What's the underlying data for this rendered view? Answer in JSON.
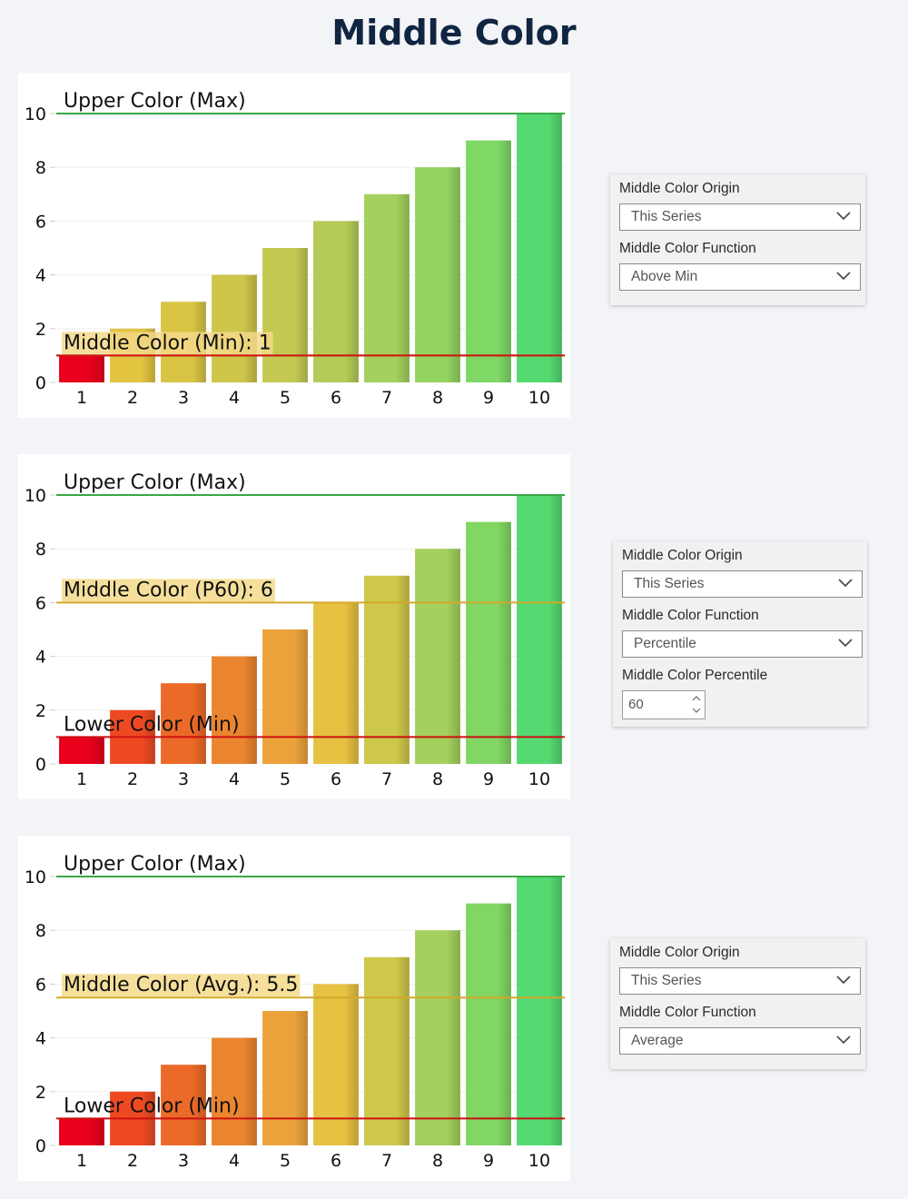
{
  "title": "Middle Color",
  "colors": {
    "upper": "#3aa845",
    "lower": "#cc1111",
    "middle_line": "#d4a82a",
    "label_bg": "#f3d98a"
  },
  "chart_data": [
    {
      "type": "bar",
      "categories": [
        "1",
        "2",
        "3",
        "4",
        "5",
        "6",
        "7",
        "8",
        "9",
        "10"
      ],
      "values": [
        1,
        2,
        3,
        4,
        5,
        6,
        7,
        8,
        9,
        10
      ],
      "ylim": [
        0,
        10
      ],
      "yticks": [
        "0",
        "2",
        "4",
        "6",
        "8",
        "10"
      ],
      "bar_colors": [
        "#e8001c",
        "#e2c441",
        "#d9c444",
        "#cdc64b",
        "#c4c952",
        "#b4cc57",
        "#a4d05d",
        "#93d461",
        "#7fd865",
        "#55da72"
      ],
      "reference_lines": [
        {
          "label": "Upper Color (Max)",
          "value": 10,
          "color": "#3aa845",
          "highlight": false
        },
        {
          "label": "Middle Color (Min): 1",
          "value": 1,
          "color": "#d4a82a",
          "highlight": true
        },
        {
          "label": "",
          "value": 1,
          "color": "#cc1111",
          "highlight": false
        }
      ]
    },
    {
      "type": "bar",
      "categories": [
        "1",
        "2",
        "3",
        "4",
        "5",
        "6",
        "7",
        "8",
        "9",
        "10"
      ],
      "values": [
        1,
        2,
        3,
        4,
        5,
        6,
        7,
        8,
        9,
        10
      ],
      "ylim": [
        0,
        10
      ],
      "yticks": [
        "0",
        "2",
        "4",
        "6",
        "8",
        "10"
      ],
      "bar_colors": [
        "#e8001c",
        "#ee4a22",
        "#ec6a28",
        "#eb8530",
        "#eca23a",
        "#e6c142",
        "#cdc84c",
        "#a4d05d",
        "#82d664",
        "#55da72"
      ],
      "reference_lines": [
        {
          "label": "Upper Color (Max)",
          "value": 10,
          "color": "#3aa845",
          "highlight": false
        },
        {
          "label": "Middle Color (P60): 6",
          "value": 6,
          "color": "#d4a82a",
          "highlight": true
        },
        {
          "label": "Lower Color (Min)",
          "value": 1,
          "color": "#cc1111",
          "highlight": false
        }
      ]
    },
    {
      "type": "bar",
      "categories": [
        "1",
        "2",
        "3",
        "4",
        "5",
        "6",
        "7",
        "8",
        "9",
        "10"
      ],
      "values": [
        1,
        2,
        3,
        4,
        5,
        6,
        7,
        8,
        9,
        10
      ],
      "ylim": [
        0,
        10
      ],
      "yticks": [
        "0",
        "2",
        "4",
        "6",
        "8",
        "10"
      ],
      "bar_colors": [
        "#e8001c",
        "#ee4a22",
        "#ec6a28",
        "#eb8530",
        "#eca23a",
        "#e6c142",
        "#cdc84c",
        "#a4d05d",
        "#82d664",
        "#55da72"
      ],
      "reference_lines": [
        {
          "label": "Upper Color (Max)",
          "value": 10,
          "color": "#3aa845",
          "highlight": false
        },
        {
          "label": "Middle Color (Avg.): 5.5",
          "value": 5.5,
          "color": "#d4a82a",
          "highlight": true
        },
        {
          "label": "Lower Color (Min)",
          "value": 1,
          "color": "#cc1111",
          "highlight": false
        }
      ]
    }
  ],
  "panels": [
    {
      "origin_label": "Middle Color Origin",
      "origin_value": "This Series",
      "function_label": "Middle Color Function",
      "function_value": "Above Min"
    },
    {
      "origin_label": "Middle Color Origin",
      "origin_value": "This Series",
      "function_label": "Middle Color Function",
      "function_value": "Percentile",
      "percentile_label": "Middle Color Percentile",
      "percentile_value": "60"
    },
    {
      "origin_label": "Middle Color Origin",
      "origin_value": "This Series",
      "function_label": "Middle Color Function",
      "function_value": "Average"
    }
  ]
}
